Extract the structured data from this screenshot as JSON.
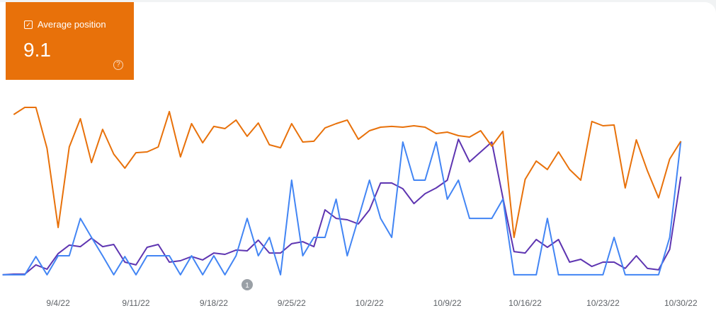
{
  "card": {
    "label": "Average position",
    "value": 9.1
  },
  "chart_data": {
    "type": "line",
    "categories": [
      null,
      null,
      null,
      null,
      null,
      "9/4/22",
      null,
      null,
      null,
      null,
      null,
      null,
      "9/11/22",
      null,
      null,
      null,
      null,
      null,
      null,
      "9/18/22",
      null,
      null,
      null,
      null,
      null,
      null,
      "9/25/22",
      null,
      null,
      null,
      null,
      null,
      null,
      "10/2/22",
      null,
      null,
      null,
      null,
      null,
      null,
      "10/9/22",
      null,
      null,
      null,
      null,
      null,
      null,
      "10/16/22",
      null,
      null,
      null,
      null,
      null,
      null,
      "10/23/22",
      null,
      null,
      null,
      null,
      null,
      null,
      "10/30/22"
    ],
    "series": [
      {
        "name": "Average position",
        "color": "#e8710a",
        "values": [
          null,
          81.4,
          85,
          85,
          64.3,
          24.3,
          65,
          79.3,
          57.1,
          73.9,
          61.4,
          54.3,
          62.1,
          62.5,
          65,
          82.9,
          60,
          76.8,
          67.1,
          75.4,
          74.3,
          78.6,
          70.4,
          77.1,
          66.1,
          64.6,
          76.8,
          67.5,
          67.9,
          74.6,
          76.8,
          78.6,
          68.9,
          73.2,
          75,
          75.4,
          75,
          75.7,
          75,
          71.8,
          72.5,
          70.7,
          70,
          73.2,
          65.4,
          72.9,
          19.3,
          48.6,
          57.9,
          53.6,
          62.5,
          53.6,
          48.2,
          77.9,
          75.7,
          76.1,
          44.3,
          68.6,
          52.9,
          39.3,
          58.9,
          67.9
        ]
      },
      {
        "color": "#4285f4",
        "values": [
          0.4,
          0.4,
          0.4,
          9.6,
          0.4,
          10,
          10,
          28.9,
          19.3,
          10,
          0.4,
          9.6,
          0.4,
          10,
          10,
          10,
          0.4,
          10,
          0.4,
          10,
          0.4,
          10,
          28.9,
          10,
          19.3,
          0.4,
          48.2,
          10,
          19.3,
          19.3,
          38.6,
          10,
          28.9,
          48.2,
          28.9,
          19.3,
          67.5,
          48.2,
          48.2,
          67.5,
          38.6,
          48.2,
          28.9,
          28.9,
          28.9,
          38.6,
          0.4,
          0.4,
          0.4,
          28.9,
          0.4,
          0.4,
          0.4,
          0.4,
          0.4,
          19.3,
          0.4,
          0.4,
          0.4,
          0.4,
          19.3,
          67.9
        ]
      },
      {
        "color": "#5e35b1",
        "values": [
          0.4,
          0.7,
          0.7,
          5.4,
          3.2,
          11.1,
          15.4,
          14.6,
          18.9,
          14.6,
          15.7,
          6.8,
          5.4,
          14.3,
          15.7,
          6.8,
          7.5,
          9.6,
          7.9,
          11.4,
          10.7,
          12.9,
          12.5,
          17.9,
          11.4,
          11.4,
          16.1,
          17.1,
          14.6,
          33.2,
          28.9,
          28.2,
          26.1,
          33.2,
          46.8,
          46.8,
          43.9,
          36.4,
          41.4,
          44.3,
          48.2,
          68.9,
          57.5,
          62.5,
          67.5,
          39.3,
          12.1,
          11.4,
          18.2,
          14.3,
          18.2,
          6.8,
          8.2,
          4.6,
          6.8,
          6.8,
          3.6,
          10,
          3.6,
          2.9,
          13.2,
          50
        ]
      }
    ],
    "ylim": [
      0,
      100
    ],
    "annotation": "1"
  }
}
